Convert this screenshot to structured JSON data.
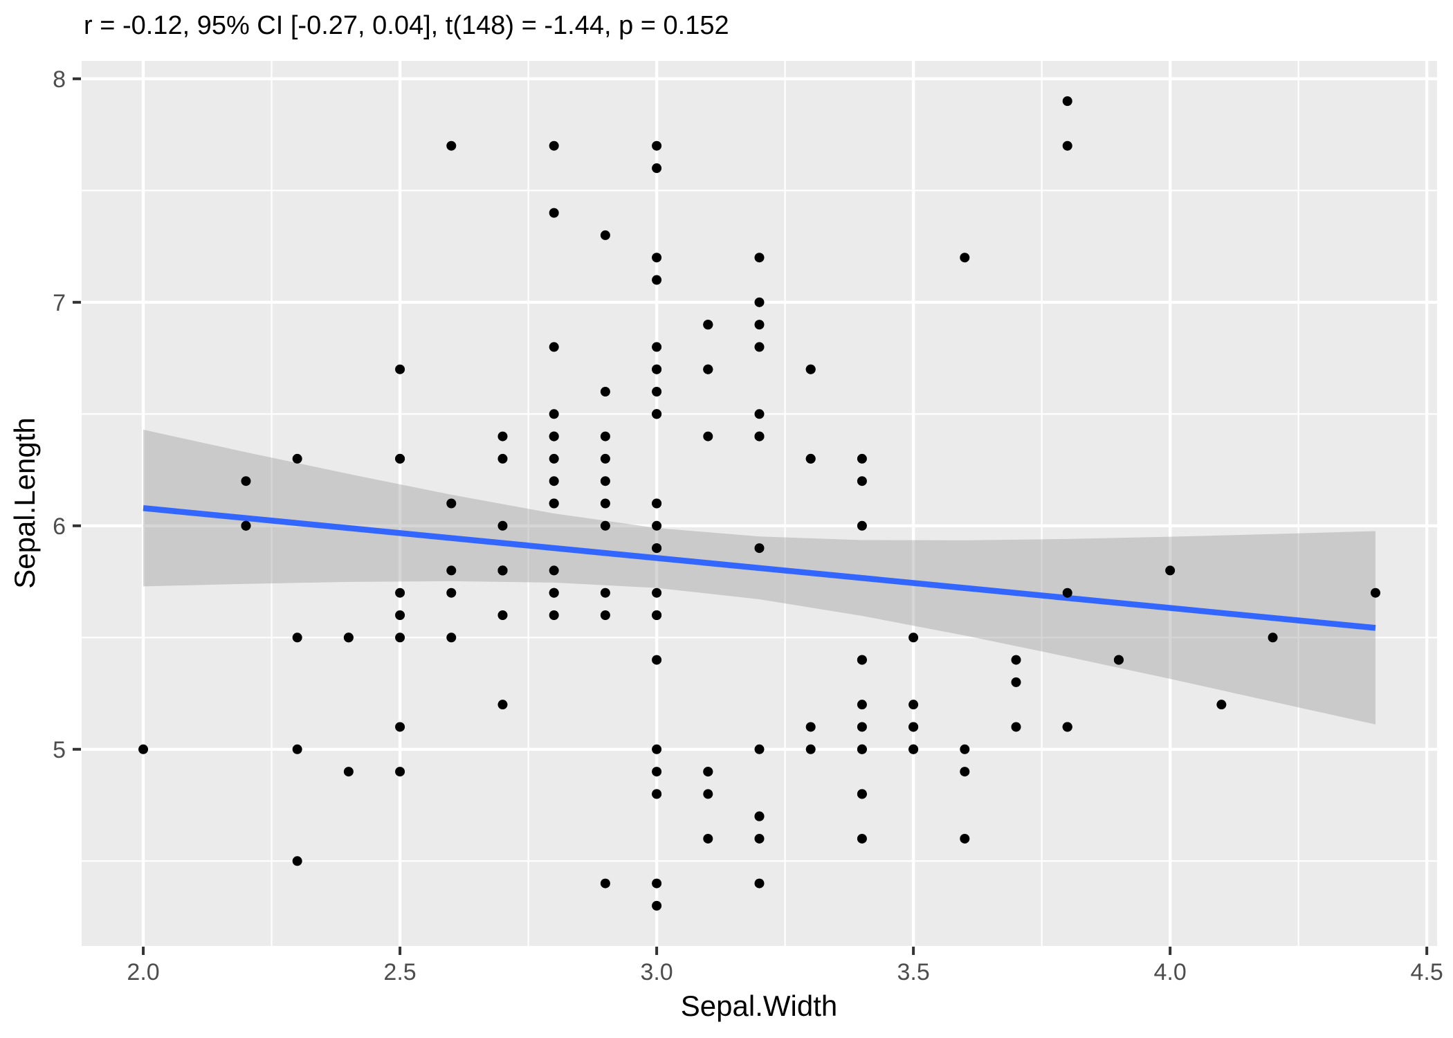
{
  "title": "r = -0.12, 95% CI [-0.27, 0.04], t(148) = -1.44, p = 0.152",
  "chart_data": {
    "type": "scatter",
    "title": "r = -0.12, 95% CI [-0.27, 0.04], t(148) = -1.44, p = 0.152",
    "xlabel": "Sepal.Width",
    "ylabel": "Sepal.Length",
    "xlim": [
      1.88,
      4.52
    ],
    "ylim": [
      4.12,
      8.08
    ],
    "x_ticks": [
      2.0,
      2.5,
      3.0,
      3.5,
      4.0,
      4.5
    ],
    "x_tick_labels": [
      "2.0",
      "2.5",
      "3.0",
      "3.5",
      "4.0",
      "4.5"
    ],
    "y_ticks": [
      5,
      6,
      7,
      8
    ],
    "y_tick_labels": [
      "5",
      "6",
      "7",
      "8"
    ],
    "x_minor_ticks": [
      2.25,
      2.75,
      3.25,
      3.75,
      4.25
    ],
    "y_minor_ticks": [
      4.5,
      5.5,
      6.5,
      7.5
    ],
    "grid": true,
    "legend": "none",
    "points": [
      [
        3.5,
        5.1
      ],
      [
        3.0,
        4.9
      ],
      [
        3.2,
        4.7
      ],
      [
        3.1,
        4.6
      ],
      [
        3.6,
        5.0
      ],
      [
        3.9,
        5.4
      ],
      [
        3.4,
        4.6
      ],
      [
        3.4,
        5.0
      ],
      [
        2.9,
        4.4
      ],
      [
        3.1,
        4.9
      ],
      [
        3.7,
        5.4
      ],
      [
        3.4,
        4.8
      ],
      [
        3.0,
        4.8
      ],
      [
        3.0,
        4.3
      ],
      [
        4.0,
        5.8
      ],
      [
        4.4,
        5.7
      ],
      [
        3.9,
        5.4
      ],
      [
        3.5,
        5.1
      ],
      [
        3.8,
        5.7
      ],
      [
        3.8,
        5.1
      ],
      [
        3.4,
        5.4
      ],
      [
        3.7,
        5.1
      ],
      [
        3.6,
        4.6
      ],
      [
        3.3,
        5.1
      ],
      [
        3.4,
        4.8
      ],
      [
        3.0,
        5.0
      ],
      [
        3.4,
        5.0
      ],
      [
        3.5,
        5.2
      ],
      [
        3.4,
        5.2
      ],
      [
        3.2,
        4.7
      ],
      [
        3.1,
        4.8
      ],
      [
        3.4,
        5.4
      ],
      [
        4.1,
        5.2
      ],
      [
        4.2,
        5.5
      ],
      [
        3.1,
        4.9
      ],
      [
        3.2,
        5.0
      ],
      [
        3.5,
        5.5
      ],
      [
        3.6,
        4.9
      ],
      [
        3.0,
        4.4
      ],
      [
        3.4,
        5.1
      ],
      [
        3.5,
        5.0
      ],
      [
        2.3,
        4.5
      ],
      [
        3.2,
        4.4
      ],
      [
        3.5,
        5.0
      ],
      [
        3.8,
        5.1
      ],
      [
        3.0,
        4.8
      ],
      [
        3.8,
        5.1
      ],
      [
        3.2,
        4.6
      ],
      [
        3.7,
        5.3
      ],
      [
        3.3,
        5.0
      ],
      [
        3.2,
        7.0
      ],
      [
        3.2,
        6.4
      ],
      [
        3.1,
        6.9
      ],
      [
        2.3,
        5.5
      ],
      [
        2.8,
        6.5
      ],
      [
        2.8,
        5.7
      ],
      [
        3.3,
        6.3
      ],
      [
        2.4,
        4.9
      ],
      [
        2.9,
        6.6
      ],
      [
        2.7,
        5.2
      ],
      [
        2.0,
        5.0
      ],
      [
        3.0,
        5.9
      ],
      [
        2.2,
        6.0
      ],
      [
        2.9,
        6.1
      ],
      [
        2.9,
        5.6
      ],
      [
        3.1,
        6.7
      ],
      [
        3.0,
        5.6
      ],
      [
        2.7,
        5.8
      ],
      [
        2.2,
        6.2
      ],
      [
        2.5,
        5.6
      ],
      [
        3.2,
        5.9
      ],
      [
        2.8,
        6.1
      ],
      [
        2.5,
        6.3
      ],
      [
        2.8,
        6.1
      ],
      [
        2.9,
        6.4
      ],
      [
        3.0,
        6.6
      ],
      [
        2.8,
        6.8
      ],
      [
        3.0,
        6.7
      ],
      [
        2.9,
        6.0
      ],
      [
        2.6,
        5.7
      ],
      [
        2.4,
        5.5
      ],
      [
        2.4,
        5.5
      ],
      [
        2.7,
        5.8
      ],
      [
        2.7,
        6.0
      ],
      [
        3.0,
        5.4
      ],
      [
        3.4,
        6.0
      ],
      [
        3.1,
        6.7
      ],
      [
        2.3,
        6.3
      ],
      [
        3.0,
        5.6
      ],
      [
        2.5,
        5.5
      ],
      [
        2.6,
        5.5
      ],
      [
        3.0,
        6.1
      ],
      [
        2.6,
        5.8
      ],
      [
        2.3,
        5.0
      ],
      [
        2.7,
        5.6
      ],
      [
        3.0,
        5.7
      ],
      [
        2.9,
        5.7
      ],
      [
        2.9,
        6.2
      ],
      [
        2.5,
        5.1
      ],
      [
        2.8,
        5.7
      ],
      [
        3.3,
        6.3
      ],
      [
        2.7,
        5.8
      ],
      [
        3.0,
        7.1
      ],
      [
        2.9,
        6.3
      ],
      [
        3.0,
        6.5
      ],
      [
        3.0,
        7.6
      ],
      [
        2.5,
        4.9
      ],
      [
        2.9,
        7.3
      ],
      [
        2.5,
        6.7
      ],
      [
        3.6,
        7.2
      ],
      [
        3.2,
        6.5
      ],
      [
        2.7,
        6.4
      ],
      [
        3.0,
        6.8
      ],
      [
        2.5,
        5.7
      ],
      [
        2.8,
        5.8
      ],
      [
        3.2,
        6.4
      ],
      [
        3.0,
        6.5
      ],
      [
        3.8,
        7.7
      ],
      [
        2.6,
        7.7
      ],
      [
        2.2,
        6.0
      ],
      [
        3.2,
        6.9
      ],
      [
        2.8,
        5.6
      ],
      [
        2.8,
        7.7
      ],
      [
        2.7,
        6.3
      ],
      [
        3.3,
        6.7
      ],
      [
        3.2,
        7.2
      ],
      [
        2.8,
        6.2
      ],
      [
        3.0,
        6.1
      ],
      [
        2.8,
        6.4
      ],
      [
        3.0,
        7.2
      ],
      [
        2.8,
        7.4
      ],
      [
        3.8,
        7.9
      ],
      [
        2.8,
        6.4
      ],
      [
        2.8,
        6.3
      ],
      [
        2.6,
        6.1
      ],
      [
        3.0,
        7.7
      ],
      [
        3.4,
        6.3
      ],
      [
        3.1,
        6.4
      ],
      [
        3.0,
        6.0
      ],
      [
        3.1,
        6.9
      ],
      [
        3.1,
        6.7
      ],
      [
        3.1,
        6.9
      ],
      [
        2.7,
        5.8
      ],
      [
        3.2,
        6.8
      ],
      [
        3.3,
        6.7
      ],
      [
        3.0,
        6.7
      ],
      [
        2.5,
        6.3
      ],
      [
        3.0,
        6.5
      ],
      [
        3.4,
        6.2
      ],
      [
        3.0,
        5.9
      ]
    ],
    "regression_line": {
      "x": [
        2.0,
        4.4
      ],
      "y": [
        6.079,
        5.543
      ]
    },
    "ci_band": {
      "x": [
        2.0,
        2.2,
        2.4,
        2.6,
        2.8,
        3.0,
        3.2,
        3.4,
        3.6,
        3.8,
        4.0,
        4.2,
        4.4
      ],
      "upper": [
        6.43,
        6.329,
        6.232,
        6.139,
        6.055,
        5.99,
        5.952,
        5.936,
        5.935,
        5.941,
        5.951,
        5.963,
        5.976
      ],
      "lower": [
        5.729,
        5.74,
        5.749,
        5.752,
        5.746,
        5.722,
        5.671,
        5.597,
        5.509,
        5.414,
        5.315,
        5.213,
        5.111
      ]
    },
    "colors": {
      "panel_bg": "#EBEBEB",
      "grid_major": "#FFFFFF",
      "grid_minor": "#FFFFFF",
      "band": "#999999",
      "band_alpha": 0.4,
      "line": "#3366FF",
      "point": "#000000",
      "tick_mark": "#333333",
      "tick_label": "#4D4D4D",
      "title_text": "#000000"
    }
  }
}
